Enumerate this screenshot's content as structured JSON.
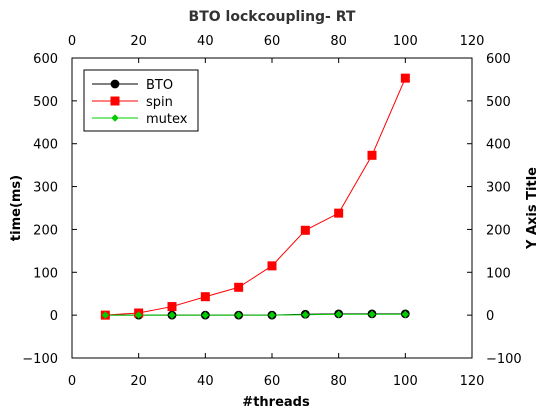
{
  "chart_data": {
    "type": "line",
    "title": "BTO lockcoupling- RT",
    "xlabel": "#threads",
    "ylabel": "time(ms)",
    "ylabel_right": "Y Axis Title",
    "xlim": [
      0,
      120
    ],
    "ylim": [
      -100,
      600
    ],
    "xticks": [
      "0",
      "20",
      "40",
      "60",
      "80",
      "100",
      "120"
    ],
    "yticks": [
      "−100",
      "0",
      "100",
      "200",
      "300",
      "400",
      "500",
      "600"
    ],
    "x": [
      10,
      20,
      30,
      40,
      50,
      60,
      70,
      80,
      90,
      100
    ],
    "grid": false,
    "legend_position": "top-left",
    "series": [
      {
        "name": "BTO",
        "color": "#000000",
        "marker": "circle",
        "values": [
          0,
          0,
          0,
          0,
          0,
          0,
          2,
          3,
          3,
          3
        ]
      },
      {
        "name": "spin",
        "color": "#ff0000",
        "marker": "square",
        "values": [
          0,
          5,
          20,
          43,
          65,
          115,
          198,
          238,
          373,
          553
        ]
      },
      {
        "name": "mutex",
        "color": "#00cc00",
        "marker": "diamond",
        "values": [
          0,
          0,
          0,
          0,
          0,
          0,
          1,
          2,
          2,
          2
        ]
      }
    ]
  }
}
